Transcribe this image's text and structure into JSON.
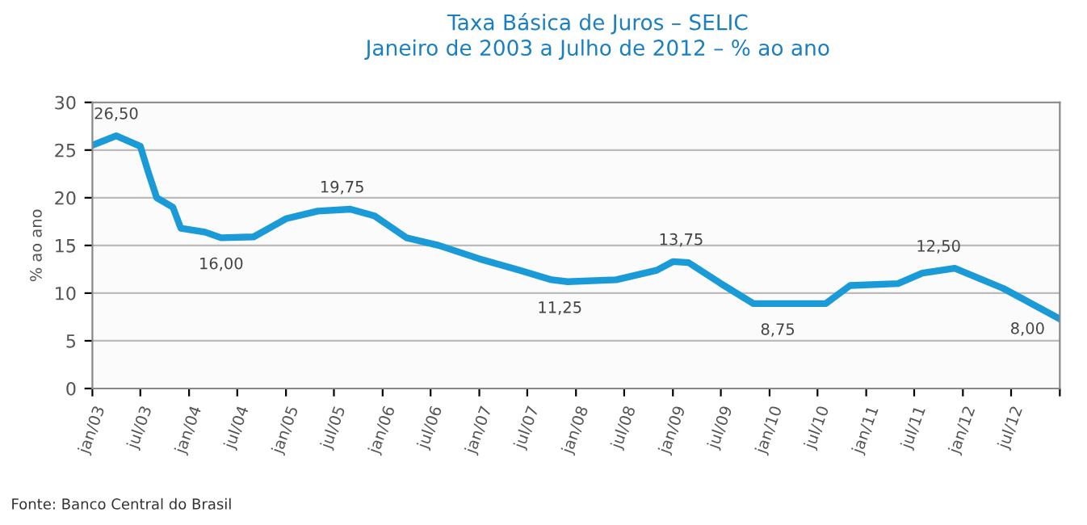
{
  "chart_data": {
    "type": "line",
    "title": "Taxa Básica de Juros – SELIC\nJaneiro de 2003 a Julho de 2012 – % ao ano",
    "ylabel": "% ao ano",
    "x": [
      "2003-01",
      "2003-04",
      "2003-07",
      "2003-08",
      "2003-09",
      "2003-11",
      "2003-12",
      "2004-03",
      "2004-05",
      "2004-09",
      "2005-01",
      "2005-05",
      "2005-09",
      "2005-12",
      "2006-04",
      "2006-08",
      "2007-01",
      "2007-06",
      "2007-10",
      "2007-12",
      "2008-06",
      "2008-11",
      "2009-01",
      "2009-03",
      "2009-07",
      "2009-11",
      "2010-08",
      "2010-11",
      "2011-05",
      "2011-08",
      "2011-12",
      "2012-06",
      "2013-01"
    ],
    "series": [
      {
        "color": "#1a9ad6",
        "values": [
          25.5,
          26.5,
          25.4,
          22.6,
          20.0,
          19.0,
          16.8,
          16.4,
          15.8,
          15.9,
          17.8,
          18.6,
          18.8,
          18.1,
          15.8,
          15.0,
          13.6,
          12.4,
          11.4,
          11.2,
          11.4,
          12.4,
          13.3,
          13.2,
          11.0,
          8.9,
          8.9,
          10.8,
          11.0,
          12.1,
          12.6,
          10.5,
          7.3
        ]
      }
    ],
    "xlim": [
      "2003-01",
      "2013-01"
    ],
    "xticks": [
      {
        "value": "2003-01",
        "label": "jan/03"
      },
      {
        "value": "2003-07",
        "label": "jul/03"
      },
      {
        "value": "2004-01",
        "label": "jan/04"
      },
      {
        "value": "2004-07",
        "label": "jul/04"
      },
      {
        "value": "2005-01",
        "label": "jan/05"
      },
      {
        "value": "2005-07",
        "label": "jul/05"
      },
      {
        "value": "2006-01",
        "label": "jan/06"
      },
      {
        "value": "2006-07",
        "label": "jul/06"
      },
      {
        "value": "2007-01",
        "label": "jan/07"
      },
      {
        "value": "2007-07",
        "label": "jul/07"
      },
      {
        "value": "2008-01",
        "label": "jan/08"
      },
      {
        "value": "2008-07",
        "label": "jul/08"
      },
      {
        "value": "2009-01",
        "label": "jan/09"
      },
      {
        "value": "2009-07",
        "label": "jul/09"
      },
      {
        "value": "2010-01",
        "label": "jan/10"
      },
      {
        "value": "2010-07",
        "label": "jul/10"
      },
      {
        "value": "2011-01",
        "label": "jan/11"
      },
      {
        "value": "2011-07",
        "label": "jul/11"
      },
      {
        "value": "2012-01",
        "label": "jan/12"
      },
      {
        "value": "2012-07",
        "label": "jul/12"
      },
      {
        "value": "2013-01",
        "label": null
      }
    ],
    "ylim": [
      0,
      30
    ],
    "yticks": [
      0,
      5,
      10,
      15,
      20,
      25,
      30
    ],
    "grid": "y",
    "legend": false,
    "marker": "none",
    "line_style": "solid",
    "annotations": [
      {
        "text": "26,50",
        "x": "2003-04",
        "y": 26.5
      },
      {
        "text": "16,00",
        "x": "2004-05",
        "y": 15.8
      },
      {
        "text": "19,75",
        "x": "2005-08",
        "y": 18.8
      },
      {
        "text": "11,25",
        "x": "2007-11",
        "y": 11.2
      },
      {
        "text": "13,75",
        "x": "2009-02",
        "y": 13.3
      },
      {
        "text": "8,75",
        "x": "2010-02",
        "y": 8.9
      },
      {
        "text": "12,50",
        "x": "2011-10",
        "y": 12.6
      },
      {
        "text": "8,00",
        "x": "2012-09",
        "y": 9.0
      },
      "Fonte: Banco Central do Brasil"
    ]
  }
}
